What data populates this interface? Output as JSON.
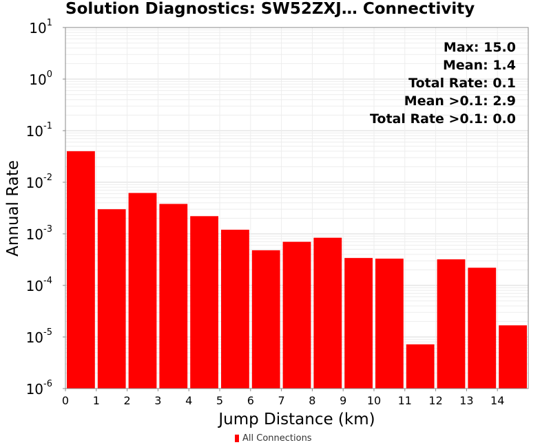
{
  "chart_data": {
    "type": "bar",
    "title": "Solution Diagnostics: SW52ZXJ… Connectivity",
    "xlabel": "Jump Distance (km)",
    "ylabel": "Annual Rate",
    "yscale": "log",
    "ylim": [
      1e-06,
      10
    ],
    "xlim": [
      0,
      15
    ],
    "xticks": [
      "0",
      "1",
      "2",
      "3",
      "4",
      "5",
      "6",
      "7",
      "8",
      "9",
      "10",
      "11",
      "12",
      "13",
      "14"
    ],
    "yticks": [
      {
        "base": "10",
        "exp": "-6"
      },
      {
        "base": "10",
        "exp": "-5"
      },
      {
        "base": "10",
        "exp": "-4"
      },
      {
        "base": "10",
        "exp": "-3"
      },
      {
        "base": "10",
        "exp": "-2"
      },
      {
        "base": "10",
        "exp": "-1"
      },
      {
        "base": "10",
        "exp": "0"
      },
      {
        "base": "10",
        "exp": "1"
      }
    ],
    "grid": true,
    "legend_position": "bottom",
    "series": [
      {
        "name": "All Connections",
        "color": "#ff0000",
        "bins": [
          {
            "start": 0,
            "end": 1,
            "value": 0.04
          },
          {
            "start": 1,
            "end": 2,
            "value": 0.003
          },
          {
            "start": 2,
            "end": 3,
            "value": 0.0062
          },
          {
            "start": 3,
            "end": 4,
            "value": 0.0038
          },
          {
            "start": 4,
            "end": 5,
            "value": 0.0022
          },
          {
            "start": 5,
            "end": 6,
            "value": 0.0012
          },
          {
            "start": 6,
            "end": 7,
            "value": 0.00048
          },
          {
            "start": 7,
            "end": 8,
            "value": 0.0007
          },
          {
            "start": 8,
            "end": 9,
            "value": 0.00084
          },
          {
            "start": 9,
            "end": 10,
            "value": 0.00034
          },
          {
            "start": 10,
            "end": 11,
            "value": 0.00033
          },
          {
            "start": 11,
            "end": 12,
            "value": 7.2e-06
          },
          {
            "start": 12,
            "end": 13,
            "value": 0.00032
          },
          {
            "start": 13,
            "end": 14,
            "value": 0.00022
          },
          {
            "start": 14,
            "end": 15,
            "value": 1.68e-05
          }
        ]
      }
    ],
    "annotations": [
      "Max: 15.0",
      "Mean: 1.4",
      "Total Rate: 0.1",
      "Mean >0.1: 2.9",
      "Total Rate >0.1: 0.0"
    ]
  }
}
